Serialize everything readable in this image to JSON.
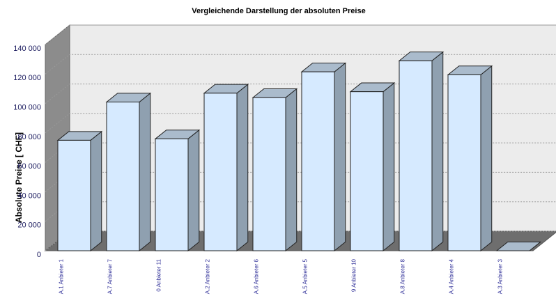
{
  "chart_data": {
    "type": "bar3d",
    "title": "Vergleichende Darstellung der absoluten Preise",
    "y_label": "Absolute Preise [ CHF]",
    "categories": [
      "A.1 Anbieter 1",
      "A.7 Anbieter 7",
      "0 Anbieter 11",
      "A.2 Anbieter 2",
      "A.6 Anbieter 6",
      "A.5 Anbieter 5",
      "9 Anbieter 10",
      "A.8 Anbieter 8",
      "A.4 Anbieter 4",
      "A.3 Anbieter 3"
    ],
    "values": [
      75000,
      101000,
      76000,
      107000,
      104000,
      121500,
      108000,
      129000,
      119500,
      0
    ],
    "color": "#d6eaff",
    "ylim": [
      0,
      140000
    ],
    "yticks": [
      0,
      {
        "value": 20000,
        "label": "20 000"
      },
      {
        "value": 40000,
        "label": "40 000"
      },
      {
        "value": 60000,
        "label": "60 000"
      },
      {
        "value": 80000,
        "label": "80 000"
      },
      {
        "value": 100000,
        "label": "100 000"
      },
      {
        "value": 120000,
        "label": "120 000"
      },
      {
        "value": 140000,
        "label": "140 000"
      }
    ],
    "grid": true
  }
}
